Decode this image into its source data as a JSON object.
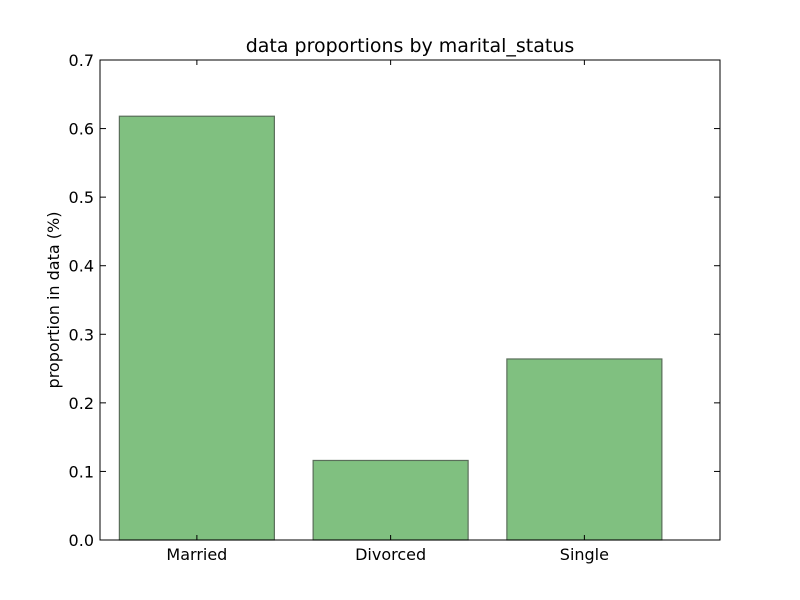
{
  "chart_data": {
    "type": "bar",
    "title": "data proportions by marital_status",
    "xlabel": "",
    "ylabel": "proportion in data (%)",
    "categories": [
      "Married",
      "Divorced",
      "Single"
    ],
    "values": [
      0.618,
      0.116,
      0.264
    ],
    "ylim": [
      0,
      0.7
    ],
    "yticks": [
      "0.0",
      "0.1",
      "0.2",
      "0.3",
      "0.4",
      "0.5",
      "0.6",
      "0.7"
    ],
    "grid": false,
    "legend": "none",
    "bar_color": "#80c080",
    "bar_edge_color": "#5a6e5a"
  }
}
